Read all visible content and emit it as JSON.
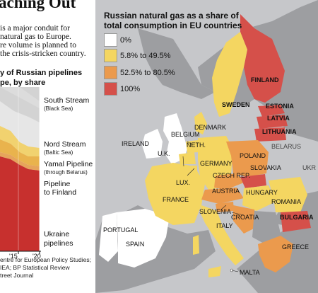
{
  "headline": "aching Out",
  "intro_lines": [
    "is a major conduit for",
    "natural gas to Europe.",
    "re volume is planned to",
    "the crisis-stricken country."
  ],
  "chart_subtitle_lines": [
    "y of Russian pipelines",
    "pe, by share"
  ],
  "chart_data": {
    "type": "area",
    "title": "y of Russian pipelines pe, by share",
    "x_tick_labels": [
      "'15",
      "'20"
    ],
    "series": [
      {
        "name": "South Stream",
        "note": "(Black Sea)",
        "color": "#d0d0d0"
      },
      {
        "name": "Nord Stream",
        "note": "(Baltic Sea)",
        "color": "#f2cf6a"
      },
      {
        "name": "Yamal Pipeline",
        "note": "(through Belarus)",
        "color": "#e7b248"
      },
      {
        "name": "Pipeline to Finland",
        "note": "",
        "color": "#e4a35c"
      },
      {
        "name": "Ukraine pipelines",
        "note": "",
        "color": "#c8302f"
      }
    ]
  },
  "pipelines": {
    "south_stream": {
      "name": "South Stream",
      "note": "(Black Sea)"
    },
    "nord_stream": {
      "name": "Nord Stream",
      "note": "(Baltic Sea)"
    },
    "yamal": {
      "name": "Yamal Pipeline",
      "note": "(through Belarus)"
    },
    "finland_line1": "Pipeline",
    "finland_line2": "to Finland",
    "ukraine_line1": "Ukraine",
    "ukraine_line2": "pipelines"
  },
  "axis": {
    "tick_15": "'15",
    "tick_20": "'20"
  },
  "source_lines": [
    "entre for European Policy Studies;",
    "IEA; BP Statistical Review",
    "treet Journal"
  ],
  "legend": {
    "title_lines": [
      "Russian natural gas as a share of",
      "total consumption in EU countries"
    ],
    "items": [
      {
        "label": "0%",
        "color": "#ffffff"
      },
      {
        "label": "5.8% to 49.5%",
        "color": "#f4d661"
      },
      {
        "label": "52.5% to 80.5%",
        "color": "#eb9a4d"
      },
      {
        "label": "100%",
        "color": "#d5504a"
      }
    ]
  },
  "countries": {
    "finland": "FINLAND",
    "sweden": "SWEDEN",
    "estonia": "ESTONIA",
    "latvia": "LATVIA",
    "lithuania": "LITHUANIA",
    "denmark": "DENMARK",
    "belarus": "BELARUS",
    "ireland": "IRELAND",
    "uk": "U.K.",
    "belgium": "BELGIUM",
    "neth": "NETH.",
    "germany": "GERMANY",
    "poland": "POLAND",
    "lux": "LUX.",
    "czech": "CZECH REP.",
    "slovakia": "SLOVAKIA",
    "ukraine": "UKR",
    "france": "FRANCE",
    "austria": "AUSTRIA",
    "hungary": "HUNGARY",
    "romania": "ROMANIA",
    "slovenia": "SLOVENIA",
    "croatia": "CROATIA",
    "bulgaria": "BULGARIA",
    "italy": "ITALY",
    "portugal": "PORTUGAL",
    "spain": "SPAIN",
    "greece": "GREECE",
    "malta": "MALTA"
  }
}
